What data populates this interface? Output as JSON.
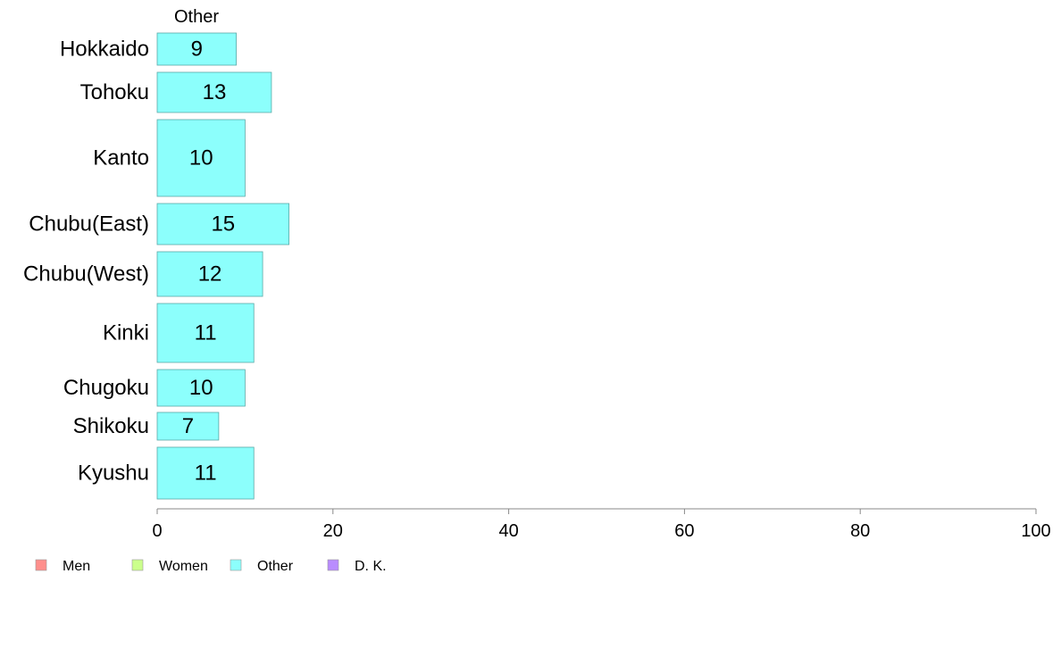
{
  "chart_data": {
    "type": "bar",
    "orientation": "horizontal",
    "column_header": "Other",
    "categories": [
      "Hokkaido",
      "Tohoku",
      "Kanto",
      "Chubu(East)",
      "Chubu(West)",
      "Kinki",
      "Chugoku",
      "Shikoku",
      "Kyushu"
    ],
    "series": [
      {
        "name": "Other",
        "values": [
          9,
          13,
          10,
          15,
          12,
          11,
          10,
          7,
          11
        ],
        "color": "#8cfffc"
      }
    ],
    "xlim": [
      0,
      100
    ],
    "xticks": [
      0,
      20,
      40,
      60,
      80,
      100
    ],
    "grid": false,
    "legend": {
      "position": "bottom-left",
      "entries": [
        {
          "label": "Men",
          "color": "#ff8f8c"
        },
        {
          "label": "Women",
          "color": "#cbff8c"
        },
        {
          "label": "Other",
          "color": "#8cfffc"
        },
        {
          "label": "D. K.",
          "color": "#b98cff"
        }
      ]
    }
  }
}
